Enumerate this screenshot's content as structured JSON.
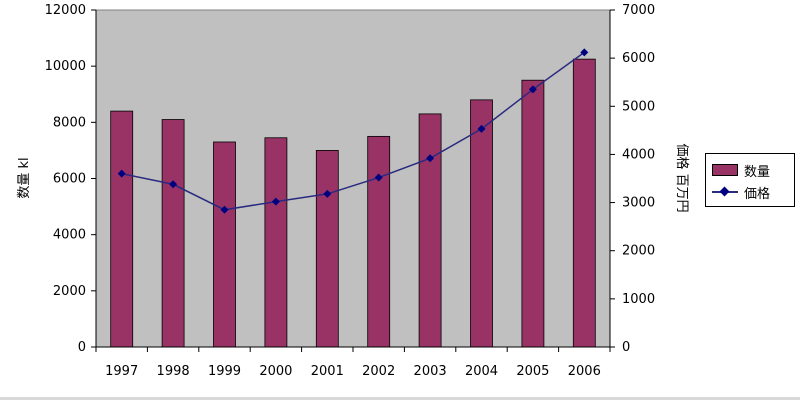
{
  "chart_data": {
    "type": "bar",
    "categories": [
      "1997",
      "1998",
      "1999",
      "2000",
      "2001",
      "2002",
      "2003",
      "2004",
      "2005",
      "2006"
    ],
    "series": [
      {
        "name": "数量",
        "type": "bar",
        "axis": "left",
        "values": [
          8400,
          8100,
          7300,
          7450,
          7000,
          7500,
          8300,
          8800,
          9500,
          10250
        ]
      },
      {
        "name": "価格",
        "type": "line",
        "axis": "right",
        "values": [
          3600,
          3380,
          2850,
          3020,
          3180,
          3520,
          3920,
          4530,
          5350,
          6120
        ]
      }
    ],
    "ylabel": "数量 kl",
    "y2label": "価格 百万円",
    "ylim": [
      0,
      12000
    ],
    "y2lim": [
      0,
      7000
    ],
    "yticks": [
      "0",
      "2000",
      "4000",
      "6000",
      "8000",
      "10000",
      "12000"
    ],
    "y2ticks": [
      "0",
      "1000",
      "2000",
      "3000",
      "4000",
      "5000",
      "6000",
      "7000"
    ],
    "grid": false,
    "legend": "right",
    "colors": {
      "plot_bg": "#c0c0c0",
      "bar_fill": "#993366",
      "line": "#2a2a80",
      "marker": "#000080"
    }
  }
}
